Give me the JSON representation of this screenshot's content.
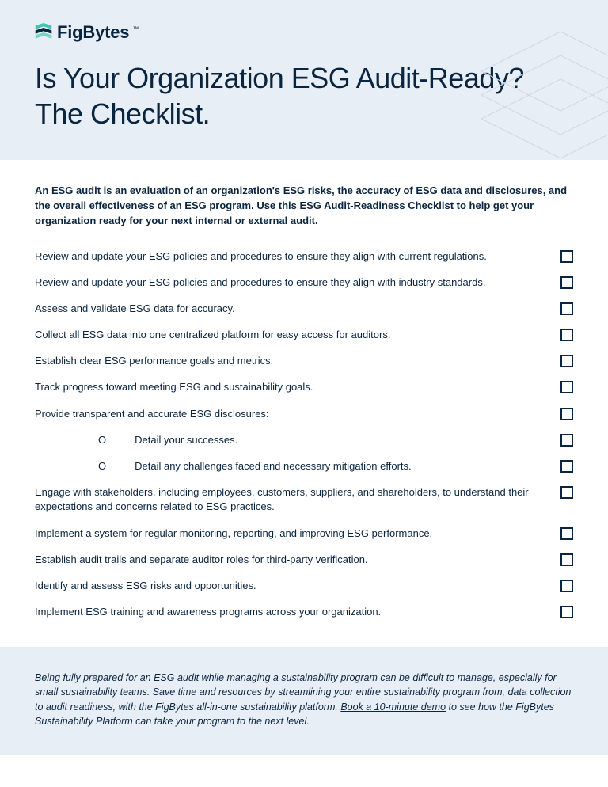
{
  "brand": {
    "name": "FigBytes",
    "logo_color_top": "#3ac9b0",
    "logo_color_mid": "#0a2540",
    "logo_color_bot": "#6fd9c5"
  },
  "title": "Is Your Organization ESG Audit-Ready? The Checklist.",
  "intro": "An ESG audit is an evaluation of an organization's ESG risks, the accuracy of ESG data and disclosures, and the overall effectiveness of an ESG program. Use this ESG Audit-Readiness Checklist to help get your organization ready for your next internal or external audit.",
  "items": [
    {
      "text": "Review and update your ESG policies and procedures to ensure they align with current regulations.",
      "sub": false
    },
    {
      "text": "Review and update your ESG policies and procedures to ensure they align with industry standards.",
      "sub": false
    },
    {
      "text": "Assess and validate ESG data for accuracy.",
      "sub": false
    },
    {
      "text": "Collect all ESG data into one centralized platform for easy access for auditors.",
      "sub": false
    },
    {
      "text": "Establish clear ESG performance goals and metrics.",
      "sub": false
    },
    {
      "text": "Track progress toward meeting ESG and sustainability goals.",
      "sub": false
    },
    {
      "text": "Provide transparent and accurate ESG disclosures:",
      "sub": false
    },
    {
      "text": "Detail your successes.",
      "sub": true,
      "bullet": "O"
    },
    {
      "text": "Detail any challenges faced and necessary mitigation efforts.",
      "sub": true,
      "bullet": "O"
    },
    {
      "text": "Engage with stakeholders, including employees, customers, suppliers, and shareholders, to understand their expectations and concerns related to ESG practices.",
      "sub": false
    },
    {
      "text": "Implement a system for regular monitoring, reporting, and improving ESG performance.",
      "sub": false
    },
    {
      "text": "Establish audit trails and separate auditor roles for third-party verification.",
      "sub": false
    },
    {
      "text": "Identify and assess ESG risks and opportunities.",
      "sub": false
    },
    {
      "text": "Implement ESG training and awareness programs across your organization.",
      "sub": false
    }
  ],
  "footer": {
    "pre": "Being fully prepared for an ESG audit while managing a sustainability program can be difficult to manage, especially for small sustainability teams. Save time and resources by streamlining your entire sustainability program from, data collection to audit readiness, with the FigBytes all-in-one sustainability platform. ",
    "link": "Book a 10-minute demo",
    "post": " to see how the FigBytes Sustainability Platform can take your program to the next level."
  },
  "colors": {
    "header_bg": "#e8eef6",
    "text": "#0a2540",
    "deco_stroke": "#cfd9e8"
  }
}
